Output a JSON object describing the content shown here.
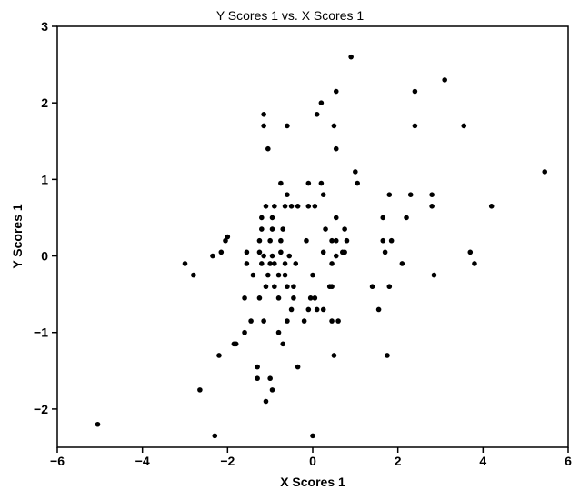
{
  "chart_data": {
    "type": "scatter",
    "title": "Y Scores 1 vs. X Scores 1",
    "xlabel": "X Scores 1",
    "ylabel": "Y Scores 1",
    "xlim": [
      -6,
      6
    ],
    "ylim": [
      -2.5,
      3
    ],
    "xticks": [
      -6,
      -4,
      -2,
      0,
      2,
      4,
      6
    ],
    "yticks": [
      -2,
      -1,
      0,
      1,
      2,
      3
    ],
    "grid": false,
    "marker_color": "#000000",
    "points": [
      [
        -5.05,
        -2.2
      ],
      [
        -2.3,
        -2.35
      ],
      [
        0.0,
        -2.35
      ],
      [
        -2.65,
        -1.75
      ],
      [
        -1.1,
        -1.9
      ],
      [
        -0.95,
        -1.75
      ],
      [
        -1.0,
        -1.6
      ],
      [
        -1.3,
        -1.6
      ],
      [
        -1.3,
        -1.45
      ],
      [
        -0.35,
        -1.45
      ],
      [
        -2.2,
        -1.3
      ],
      [
        0.5,
        -1.3
      ],
      [
        1.75,
        -1.3
      ],
      [
        -1.85,
        -1.15
      ],
      [
        -1.8,
        -1.15
      ],
      [
        -0.7,
        -1.15
      ],
      [
        -1.6,
        -1.0
      ],
      [
        -0.8,
        -1.0
      ],
      [
        -1.45,
        -0.85
      ],
      [
        -1.15,
        -0.85
      ],
      [
        -0.6,
        -0.85
      ],
      [
        -0.2,
        -0.85
      ],
      [
        0.45,
        -0.85
      ],
      [
        0.6,
        -0.85
      ],
      [
        -0.5,
        -0.7
      ],
      [
        -0.1,
        -0.7
      ],
      [
        0.1,
        -0.7
      ],
      [
        0.25,
        -0.7
      ],
      [
        1.55,
        -0.7
      ],
      [
        -1.6,
        -0.55
      ],
      [
        -1.25,
        -0.55
      ],
      [
        -0.8,
        -0.55
      ],
      [
        -0.45,
        -0.55
      ],
      [
        -0.05,
        -0.55
      ],
      [
        0.05,
        -0.55
      ],
      [
        -1.1,
        -0.4
      ],
      [
        -0.9,
        -0.4
      ],
      [
        -0.6,
        -0.4
      ],
      [
        -0.45,
        -0.4
      ],
      [
        0.4,
        -0.4
      ],
      [
        0.45,
        -0.4
      ],
      [
        1.4,
        -0.4
      ],
      [
        1.8,
        -0.4
      ],
      [
        -1.4,
        -0.25
      ],
      [
        -1.05,
        -0.25
      ],
      [
        -0.8,
        -0.25
      ],
      [
        -0.65,
        -0.25
      ],
      [
        0.0,
        -0.25
      ],
      [
        2.85,
        -0.25
      ],
      [
        -2.8,
        -0.25
      ],
      [
        -3.0,
        -0.1
      ],
      [
        -1.55,
        -0.1
      ],
      [
        -1.2,
        -0.1
      ],
      [
        -1.0,
        -0.1
      ],
      [
        -0.9,
        -0.1
      ],
      [
        -0.65,
        -0.1
      ],
      [
        -0.4,
        -0.1
      ],
      [
        0.45,
        -0.1
      ],
      [
        2.1,
        -0.1
      ],
      [
        3.8,
        -0.1
      ],
      [
        -2.35,
        0.0
      ],
      [
        -1.15,
        0.0
      ],
      [
        -0.95,
        0.0
      ],
      [
        -0.55,
        0.0
      ],
      [
        0.55,
        0.0
      ],
      [
        -2.15,
        0.05
      ],
      [
        -1.55,
        0.05
      ],
      [
        -1.25,
        0.05
      ],
      [
        -0.75,
        0.05
      ],
      [
        0.25,
        0.05
      ],
      [
        0.7,
        0.05
      ],
      [
        0.75,
        0.05
      ],
      [
        1.7,
        0.05
      ],
      [
        3.7,
        0.05
      ],
      [
        -2.05,
        0.2
      ],
      [
        -1.25,
        0.2
      ],
      [
        -1.0,
        0.2
      ],
      [
        -0.75,
        0.2
      ],
      [
        -0.15,
        0.2
      ],
      [
        0.45,
        0.2
      ],
      [
        0.55,
        0.2
      ],
      [
        0.8,
        0.2
      ],
      [
        1.65,
        0.2
      ],
      [
        1.85,
        0.2
      ],
      [
        -2.0,
        0.25
      ],
      [
        -1.2,
        0.35
      ],
      [
        -0.95,
        0.35
      ],
      [
        -0.7,
        0.35
      ],
      [
        0.3,
        0.35
      ],
      [
        0.75,
        0.35
      ],
      [
        -0.95,
        0.5
      ],
      [
        -1.2,
        0.5
      ],
      [
        0.55,
        0.5
      ],
      [
        1.65,
        0.5
      ],
      [
        2.2,
        0.5
      ],
      [
        -1.1,
        0.65
      ],
      [
        -0.9,
        0.65
      ],
      [
        -0.65,
        0.65
      ],
      [
        -0.5,
        0.65
      ],
      [
        -0.35,
        0.65
      ],
      [
        -0.1,
        0.65
      ],
      [
        0.05,
        0.65
      ],
      [
        2.8,
        0.65
      ],
      [
        4.2,
        0.65
      ],
      [
        -0.6,
        0.8
      ],
      [
        0.25,
        0.8
      ],
      [
        1.8,
        0.8
      ],
      [
        2.3,
        0.8
      ],
      [
        2.8,
        0.8
      ],
      [
        -0.75,
        0.95
      ],
      [
        -0.1,
        0.95
      ],
      [
        0.2,
        0.95
      ],
      [
        1.05,
        0.95
      ],
      [
        1.0,
        1.1
      ],
      [
        5.45,
        1.1
      ],
      [
        -1.05,
        1.4
      ],
      [
        0.55,
        1.4
      ],
      [
        -1.15,
        1.7
      ],
      [
        -0.6,
        1.7
      ],
      [
        0.5,
        1.7
      ],
      [
        2.4,
        1.7
      ],
      [
        3.55,
        1.7
      ],
      [
        -1.15,
        1.85
      ],
      [
        0.1,
        1.85
      ],
      [
        0.2,
        2.0
      ],
      [
        0.55,
        2.15
      ],
      [
        2.4,
        2.15
      ],
      [
        3.1,
        2.3
      ],
      [
        0.9,
        2.6
      ]
    ]
  }
}
